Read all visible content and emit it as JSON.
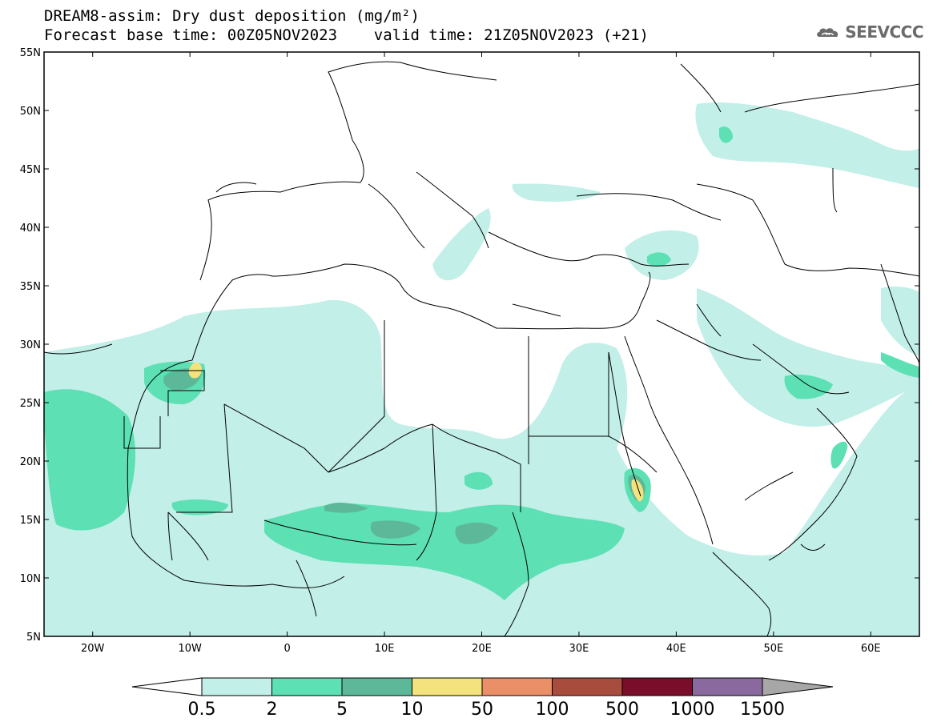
{
  "header": {
    "title_line1": "DREAM8-assim: Dry dust deposition (mg/m²)",
    "title_line2": "Forecast base time: 00Z05NOV2023    valid time: 21Z05NOV2023 (+21)"
  },
  "logo": {
    "text": "SEEVCCC",
    "icon": "cloud-logo-icon"
  },
  "map": {
    "lon_range": [
      -25,
      65
    ],
    "lat_range": [
      5,
      55
    ],
    "lat_ticks": [
      {
        "value": 55,
        "label": "55N"
      },
      {
        "value": 50,
        "label": "50N"
      },
      {
        "value": 45,
        "label": "45N"
      },
      {
        "value": 40,
        "label": "40N"
      },
      {
        "value": 35,
        "label": "35N"
      },
      {
        "value": 30,
        "label": "30N"
      },
      {
        "value": 25,
        "label": "25N"
      },
      {
        "value": 20,
        "label": "20N"
      },
      {
        "value": 15,
        "label": "15N"
      },
      {
        "value": 10,
        "label": "10N"
      },
      {
        "value": 5,
        "label": "5N"
      }
    ],
    "lon_ticks": [
      {
        "value": -20,
        "label": "20W"
      },
      {
        "value": -10,
        "label": "10W"
      },
      {
        "value": 0,
        "label": "0"
      },
      {
        "value": 10,
        "label": "10E"
      },
      {
        "value": 20,
        "label": "20E"
      },
      {
        "value": 30,
        "label": "30E"
      },
      {
        "value": 40,
        "label": "40E"
      },
      {
        "value": 50,
        "label": "50E"
      },
      {
        "value": 60,
        "label": "60E"
      }
    ],
    "colors": {
      "level1": "#c2efe8",
      "level2": "#5ce0b4",
      "level3": "#5db89a",
      "level4": "#f3e27e",
      "coastline": "#000000"
    }
  },
  "colorbar": {
    "levels": [
      {
        "label": "0.5",
        "color": "#c2efe8"
      },
      {
        "label": "2",
        "color": "#5ce0b4"
      },
      {
        "label": "5",
        "color": "#5db89a"
      },
      {
        "label": "10",
        "color": "#f3e27e"
      },
      {
        "label": "50",
        "color": "#ea8f67"
      },
      {
        "label": "100",
        "color": "#a84c3e"
      },
      {
        "label": "500",
        "color": "#7a0e2a"
      },
      {
        "label": "1000",
        "color": "#8a6a9e"
      },
      {
        "label": "1500",
        "color": "#a7a7a7"
      }
    ],
    "under_color": "#ffffff"
  }
}
